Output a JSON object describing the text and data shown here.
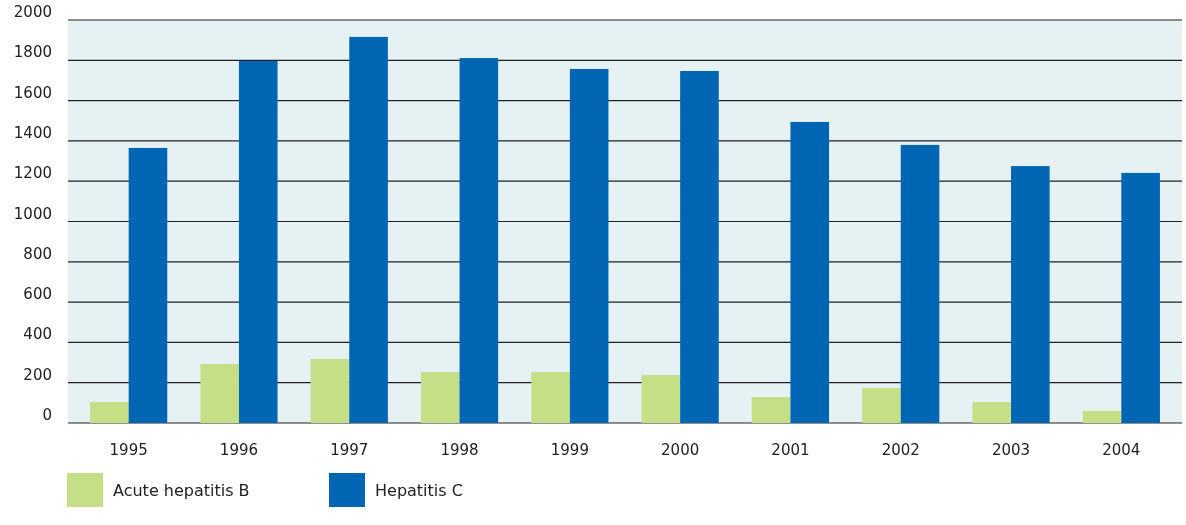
{
  "chart_data": {
    "type": "bar",
    "categories": [
      "1995",
      "1996",
      "1997",
      "1998",
      "1999",
      "2000",
      "2001",
      "2002",
      "2003",
      "2004"
    ],
    "series": [
      {
        "name": "Acute hepatitis B",
        "color": "#c5df86",
        "values": [
          104,
          293,
          318,
          253,
          253,
          238,
          129,
          174,
          104,
          60
        ]
      },
      {
        "name": "Hepatitis C",
        "color": "#0066b3",
        "values": [
          1365,
          1797,
          1916,
          1811,
          1757,
          1747,
          1494,
          1380,
          1275,
          1241
        ]
      }
    ],
    "ylim": [
      0,
      2000
    ],
    "yticks": [
      0,
      200,
      400,
      600,
      800,
      1000,
      1200,
      1400,
      1600,
      1800,
      2000
    ],
    "grid": "y",
    "legend": "bottom left"
  }
}
